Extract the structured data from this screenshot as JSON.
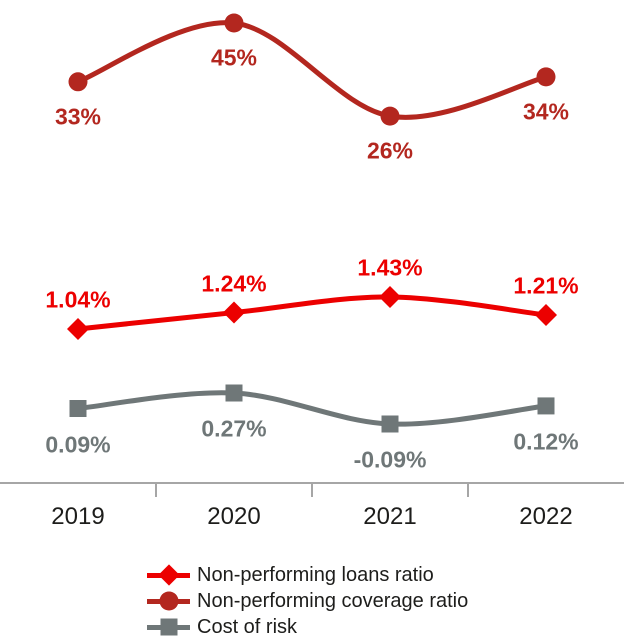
{
  "chart_data": {
    "type": "line",
    "title": "",
    "xlabel": "",
    "ylabel": "",
    "x": [
      "2019",
      "2020",
      "2021",
      "2022"
    ],
    "series": [
      {
        "name": "Non-performing loans ratio",
        "marker": "diamond",
        "color": "#EC0000",
        "values": [
          1.04,
          1.24,
          1.43,
          1.21
        ],
        "labels": [
          "1.04%",
          "1.24%",
          "1.43%",
          "1.21%"
        ]
      },
      {
        "name": "Non-performing coverage ratio",
        "marker": "circle",
        "color": "#B3271F",
        "values": [
          33,
          45,
          26,
          34
        ],
        "labels": [
          "33%",
          "45%",
          "26%",
          "34%"
        ]
      },
      {
        "name": "Cost of risk",
        "marker": "square",
        "color": "#6F7778",
        "values": [
          0.09,
          0.27,
          -0.09,
          0.12
        ],
        "labels": [
          "0.09%",
          "0.27%",
          "-0.09%",
          "0.12%"
        ]
      }
    ],
    "legend_position": "bottom-left",
    "grid": false,
    "smooth_lines": true,
    "axis_color": "#A6A6A6",
    "text_color": "#1D1D1B"
  }
}
